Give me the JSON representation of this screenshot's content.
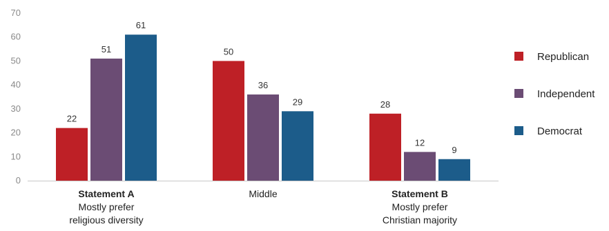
{
  "chart_data": {
    "type": "bar",
    "title": "",
    "xlabel": "",
    "ylabel": "",
    "ylim": [
      0,
      70
    ],
    "yticks": [
      0,
      10,
      20,
      30,
      40,
      50,
      60,
      70
    ],
    "grid": false,
    "legend_position": "right",
    "categories": [
      {
        "title": "Statement A",
        "lines": [
          "Mostly prefer",
          "religious diversity"
        ]
      },
      {
        "title": "",
        "lines": [
          "Middle"
        ]
      },
      {
        "title": "Statement B",
        "lines": [
          "Mostly prefer",
          "Christian majority"
        ]
      }
    ],
    "series": [
      {
        "name": "Republican",
        "color": "#be2026",
        "values": [
          22,
          50,
          28
        ]
      },
      {
        "name": "Independent",
        "color": "#6b4c74",
        "values": [
          51,
          36,
          12
        ]
      },
      {
        "name": "Democrat",
        "color": "#1c5c8a",
        "values": [
          61,
          29,
          9
        ]
      }
    ]
  }
}
